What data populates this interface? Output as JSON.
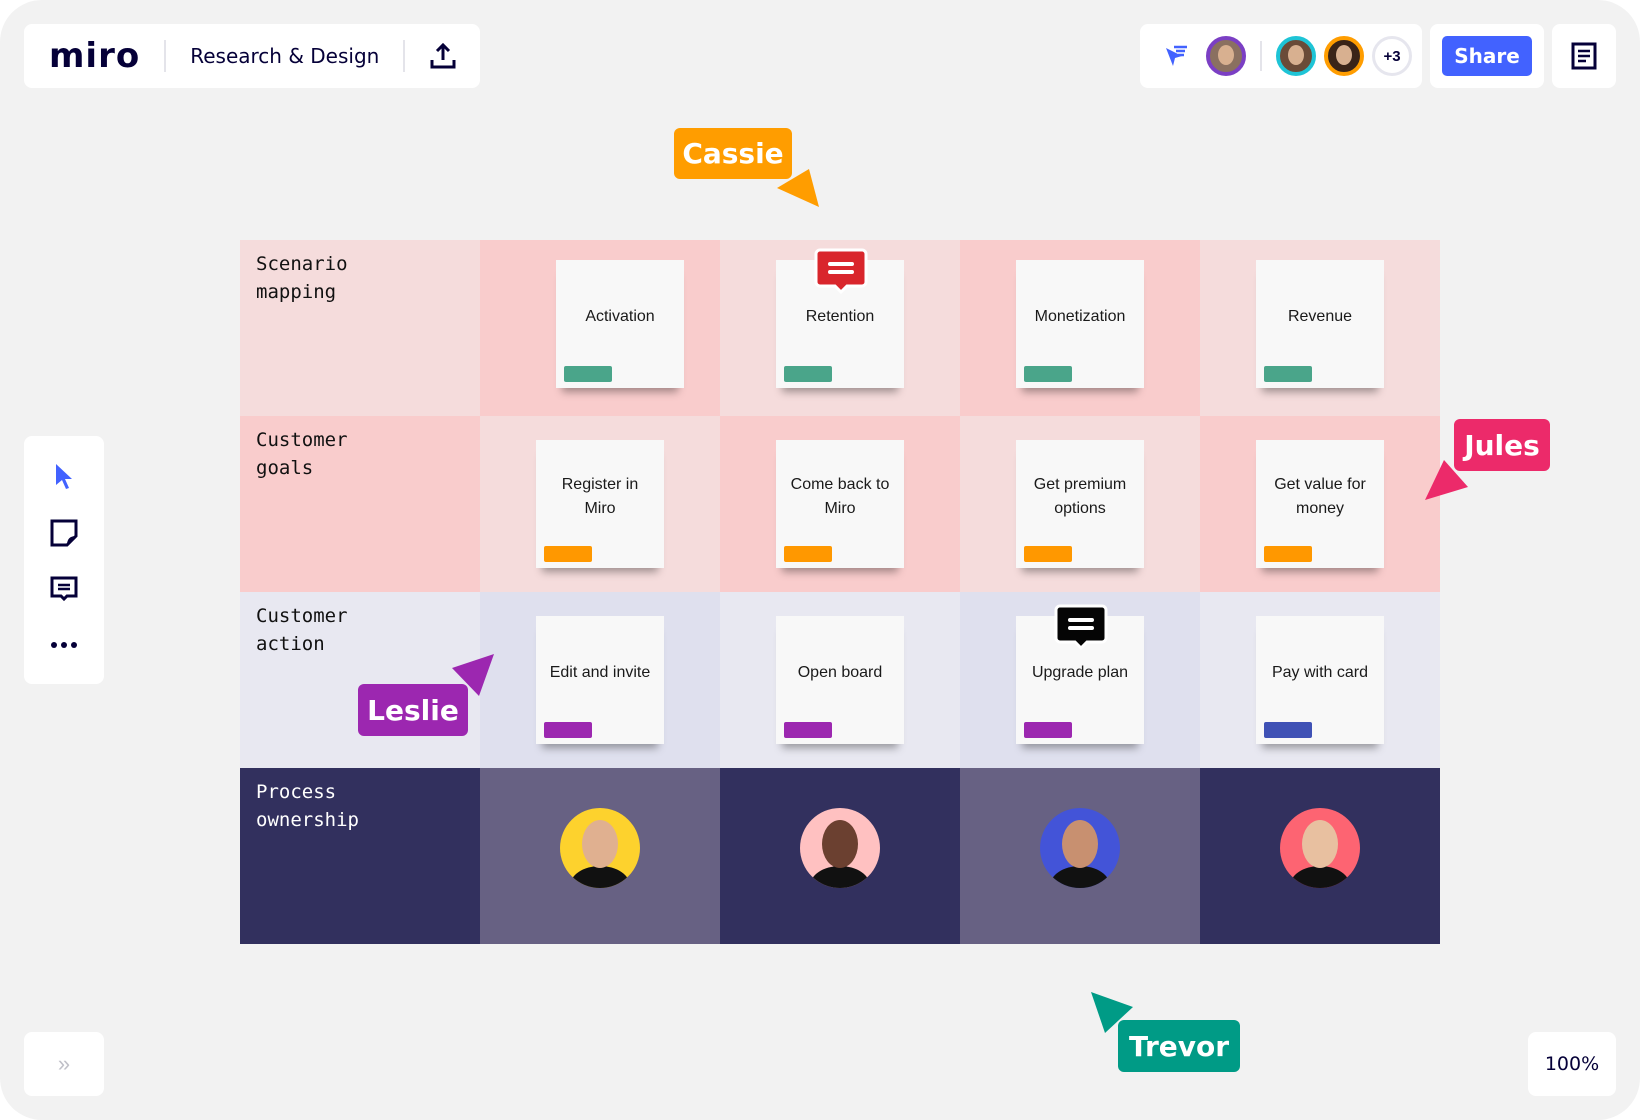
{
  "header": {
    "logo": "miro",
    "board_title": "Research & Design",
    "upload_icon": "upload-icon"
  },
  "collaborators": {
    "avatar_ring_colors": [
      "#7b3fc4",
      "#1ec4d6",
      "#ff9d00"
    ],
    "more_count": "+3",
    "share_label": "Share"
  },
  "toolbar": {
    "items": [
      "select-cursor-icon",
      "sticky-note-icon",
      "comment-icon",
      "more-icon"
    ],
    "accent": "#4262ff"
  },
  "board": {
    "rows": [
      {
        "label": "Scenario\nmapping",
        "bg": [
          "#f5dcdc",
          "#f9cccc",
          "#f5dcdc",
          "#f9cccc",
          "#f5dcdc"
        ],
        "stickies": [
          {
            "text": "Activation",
            "tag": "#4aa58a"
          },
          {
            "text": "Retention",
            "tag": "#4aa58a",
            "comment": "#d9262c"
          },
          {
            "text": "Monetization",
            "tag": "#4aa58a"
          },
          {
            "text": "Revenue",
            "tag": "#4aa58a"
          }
        ]
      },
      {
        "label": "Customer\ngoals",
        "bg": [
          "#f9cccc",
          "#f5dcdc",
          "#f9cccc",
          "#f5dcdc",
          "#f9cccc"
        ],
        "stickies": [
          {
            "text": "Register in Miro",
            "tag": "#ff9800"
          },
          {
            "text": "Come back to Miro",
            "tag": "#ff9800"
          },
          {
            "text": "Get premium options",
            "tag": "#ff9800"
          },
          {
            "text": "Get value for money",
            "tag": "#ff9800"
          }
        ]
      },
      {
        "label": "Customer\naction",
        "bg": [
          "#e8e8f1",
          "#dfe0ee",
          "#e8e8f1",
          "#dfe0ee",
          "#e8e8f1"
        ],
        "stickies": [
          {
            "text": "Edit and invite",
            "tag": "#9c27b0"
          },
          {
            "text": "Open board",
            "tag": "#9c27b0"
          },
          {
            "text": "Upgrade plan",
            "tag": "#9c27b0",
            "comment": "#050505"
          },
          {
            "text": "Pay with card",
            "tag": "#3f51b5"
          }
        ]
      },
      {
        "label": "Process\nownership",
        "bg": [
          "#32305e",
          "#676183",
          "#32305e",
          "#676183",
          "#32305e"
        ],
        "owners": [
          {
            "ring": "#fdd22d"
          },
          {
            "ring": "#ffc1c1"
          },
          {
            "ring": "#4354d8"
          },
          {
            "ring": "#fd6472"
          }
        ]
      }
    ]
  },
  "cursors": [
    {
      "name": "Cassie",
      "color": "#ff9d00"
    },
    {
      "name": "Jules",
      "color": "#ec2a6a"
    },
    {
      "name": "Leslie",
      "color": "#9c27b0"
    },
    {
      "name": "Trevor",
      "color": "#009b86"
    }
  ],
  "footer": {
    "expand_icon": "double-chevron-right-icon",
    "zoom_level": "100%"
  }
}
